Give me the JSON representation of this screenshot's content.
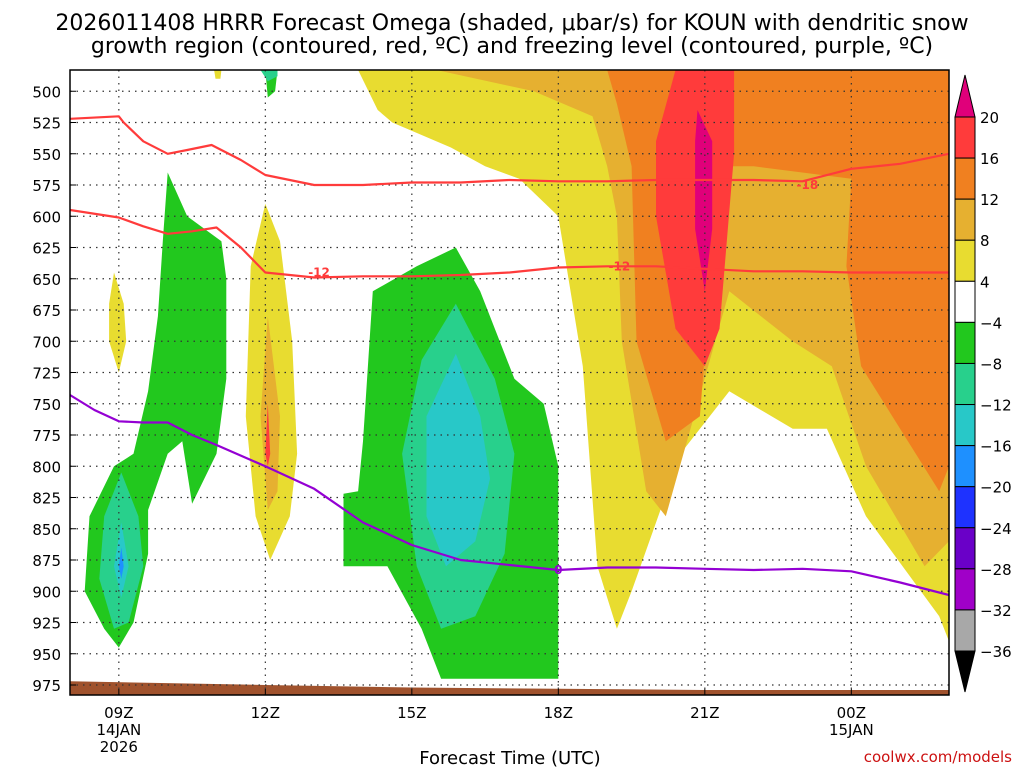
{
  "chart_data": {
    "type": "heatmap",
    "title_line1": "2026011408 HRRR Forecast Omega (shaded, μbar/s) for KOUN with dendritic snow",
    "title_line2": "growth region (contoured, red, ºC) and freezing level (contoured, purple, ºC)",
    "xlabel": "Forecast Time (UTC)",
    "credit": "coolwx.com/models",
    "x_ticks": [
      {
        "hour": 9,
        "label": "09Z",
        "sub1": "14JAN",
        "sub2": "2026"
      },
      {
        "hour": 12,
        "label": "12Z",
        "sub1": "",
        "sub2": ""
      },
      {
        "hour": 15,
        "label": "15Z",
        "sub1": "",
        "sub2": ""
      },
      {
        "hour": 18,
        "label": "18Z",
        "sub1": "",
        "sub2": ""
      },
      {
        "hour": 21,
        "label": "21Z",
        "sub1": "",
        "sub2": ""
      },
      {
        "hour": 24,
        "label": "00Z",
        "sub1": "15JAN",
        "sub2": ""
      }
    ],
    "xlim_hours": [
      8,
      26
    ],
    "y_ticks_hpa": [
      500,
      525,
      550,
      575,
      600,
      625,
      650,
      675,
      700,
      725,
      750,
      775,
      800,
      825,
      850,
      875,
      900,
      925,
      950,
      975
    ],
    "ylim_hpa": [
      483,
      983
    ],
    "colorbar": {
      "labels": [
        "20",
        "16",
        "12",
        "8",
        "4",
        "−4",
        "−8",
        "−12",
        "−16",
        "−20",
        "−24",
        "−28",
        "−32",
        "−36"
      ],
      "colors": [
        "#ff3b3b",
        "#f08020",
        "#e6b030",
        "#e8dc30",
        "#ffffff",
        "#22c81e",
        "#28d08c",
        "#28c8c8",
        "#1e90ff",
        "#1e32ff",
        "#6a00c8",
        "#a000c8",
        "#a8a8a8"
      ],
      "top_color": "#e0007a",
      "bottom_color": "#000000"
    },
    "omega_regions": [
      {
        "value": 4,
        "color": "#e8dc30",
        "points": [
          [
            10.8,
            483
          ],
          [
            26,
            483
          ],
          [
            26,
            940
          ],
          [
            25.8,
            920
          ],
          [
            24.3,
            840
          ],
          [
            23.5,
            770
          ],
          [
            22.8,
            770
          ],
          [
            21.5,
            740
          ],
          [
            20.5,
            790
          ],
          [
            19.5,
            900
          ],
          [
            19.2,
            930
          ],
          [
            18.8,
            880
          ],
          [
            18.5,
            720
          ],
          [
            18,
            600
          ],
          [
            17.2,
            570
          ],
          [
            16.5,
            560
          ],
          [
            15.8,
            545
          ],
          [
            14.6,
            525
          ],
          [
            14.3,
            515
          ],
          [
            13.9,
            483
          ]
        ]
      },
      {
        "value": 8,
        "color": "#e6b030",
        "points": [
          [
            15.5,
            483
          ],
          [
            26,
            483
          ],
          [
            26,
            860
          ],
          [
            25.5,
            880
          ],
          [
            24.3,
            800
          ],
          [
            23.6,
            720
          ],
          [
            22.8,
            700
          ],
          [
            21.5,
            660
          ],
          [
            20.2,
            840
          ],
          [
            19.8,
            820
          ],
          [
            19.3,
            700
          ],
          [
            19.2,
            600
          ],
          [
            19,
            560
          ],
          [
            18.7,
            520
          ],
          [
            17.5,
            500
          ]
        ]
      },
      {
        "value": 12,
        "color": "#f08020",
        "points": [
          [
            19,
            483
          ],
          [
            26,
            483
          ],
          [
            26,
            800
          ],
          [
            25.8,
            820
          ],
          [
            24.2,
            720
          ],
          [
            23.9,
            640
          ],
          [
            24,
            570
          ],
          [
            22,
            560
          ],
          [
            21.3,
            560
          ],
          [
            20.9,
            760
          ],
          [
            20.2,
            780
          ],
          [
            19.6,
            700
          ],
          [
            19.5,
            560
          ],
          [
            19.2,
            510
          ]
        ]
      },
      {
        "value": 16,
        "color": "#ff3b3b",
        "points": [
          [
            20.4,
            483
          ],
          [
            21.6,
            483
          ],
          [
            21.6,
            550
          ],
          [
            21.3,
            690
          ],
          [
            21,
            720
          ],
          [
            20.4,
            690
          ],
          [
            20,
            600
          ],
          [
            20,
            540
          ]
        ]
      },
      {
        "value": 20,
        "color": "#e0007a",
        "points": [
          [
            20.85,
            515
          ],
          [
            21.15,
            540
          ],
          [
            21.15,
            610
          ],
          [
            21,
            660
          ],
          [
            20.8,
            610
          ],
          [
            20.8,
            540
          ]
        ]
      },
      {
        "value": 4,
        "color": "#e8dc30",
        "points": [
          [
            12,
            590
          ],
          [
            12.3,
            620
          ],
          [
            12.55,
            700
          ],
          [
            12.65,
            790
          ],
          [
            12.5,
            840
          ],
          [
            12.1,
            875
          ],
          [
            11.8,
            840
          ],
          [
            11.6,
            760
          ],
          [
            11.7,
            640
          ]
        ]
      },
      {
        "value": 8,
        "color": "#e6b030",
        "points": [
          [
            12.05,
            680
          ],
          [
            12.3,
            760
          ],
          [
            12.25,
            820
          ],
          [
            12.05,
            835
          ],
          [
            11.9,
            760
          ]
        ]
      },
      {
        "value": 16,
        "color": "#ff3b3b",
        "points": [
          [
            12.05,
            750
          ],
          [
            12.1,
            790
          ],
          [
            12.05,
            800
          ],
          [
            12,
            790
          ]
        ]
      },
      {
        "value": 4,
        "color": "#e8dc30",
        "points": [
          [
            8.9,
            645
          ],
          [
            9.1,
            670
          ],
          [
            9.15,
            700
          ],
          [
            9,
            725
          ],
          [
            8.8,
            700
          ],
          [
            8.8,
            670
          ]
        ]
      },
      {
        "value": -4,
        "color": "#22c81e",
        "points": [
          [
            10,
            565
          ],
          [
            10.4,
            600
          ],
          [
            11.1,
            620
          ],
          [
            11.2,
            650
          ],
          [
            11.2,
            730
          ],
          [
            11,
            790
          ],
          [
            10.5,
            830
          ],
          [
            10.3,
            780
          ],
          [
            10,
            790
          ],
          [
            9.6,
            835
          ],
          [
            9.6,
            870
          ],
          [
            9.3,
            925
          ],
          [
            9,
            945
          ],
          [
            8.7,
            930
          ],
          [
            8.3,
            900
          ],
          [
            8.4,
            840
          ],
          [
            8.9,
            800
          ],
          [
            9.3,
            790
          ],
          [
            9.6,
            740
          ],
          [
            9.8,
            680
          ],
          [
            9.9,
            620
          ]
        ]
      },
      {
        "value": -4,
        "color": "#22c81e",
        "points": [
          [
            15.9,
            625
          ],
          [
            16.4,
            660
          ],
          [
            17.1,
            730
          ],
          [
            17.7,
            750
          ],
          [
            18,
            800
          ],
          [
            18,
            970
          ],
          [
            15.6,
            970
          ],
          [
            15.2,
            930
          ],
          [
            14.5,
            880
          ],
          [
            13.6,
            880
          ],
          [
            13.6,
            822
          ],
          [
            13.9,
            820
          ],
          [
            14,
            780
          ],
          [
            14.2,
            660
          ],
          [
            15.1,
            640
          ]
        ]
      },
      {
        "value": -4,
        "color": "#22c81e",
        "points": [
          [
            12,
            483
          ],
          [
            12.25,
            483
          ],
          [
            12.2,
            500
          ],
          [
            12.05,
            505
          ]
        ]
      },
      {
        "value": -8,
        "color": "#28d08c",
        "points": [
          [
            9.05,
            805
          ],
          [
            9.4,
            840
          ],
          [
            9.5,
            880
          ],
          [
            9.2,
            925
          ],
          [
            8.9,
            930
          ],
          [
            8.6,
            890
          ],
          [
            8.7,
            840
          ]
        ]
      },
      {
        "value": -8,
        "color": "#28d08c",
        "points": [
          [
            15.9,
            670
          ],
          [
            16.7,
            730
          ],
          [
            17.1,
            790
          ],
          [
            16.9,
            870
          ],
          [
            16.3,
            920
          ],
          [
            15.6,
            930
          ],
          [
            15.1,
            880
          ],
          [
            14.8,
            790
          ],
          [
            15.2,
            715
          ]
        ]
      },
      {
        "value": -12,
        "color": "#28c8c8",
        "points": [
          [
            9.05,
            845
          ],
          [
            9.2,
            880
          ],
          [
            9.05,
            905
          ],
          [
            8.9,
            880
          ]
        ]
      },
      {
        "value": -12,
        "color": "#28c8c8",
        "points": [
          [
            15.9,
            710
          ],
          [
            16.4,
            760
          ],
          [
            16.6,
            810
          ],
          [
            16.3,
            860
          ],
          [
            15.7,
            880
          ],
          [
            15.3,
            840
          ],
          [
            15.3,
            760
          ]
        ]
      },
      {
        "value": -16,
        "color": "#1e90ff",
        "points": [
          [
            9.05,
            865
          ],
          [
            9.1,
            880
          ],
          [
            9.05,
            890
          ],
          [
            9,
            880
          ]
        ]
      },
      {
        "value": -8,
        "color": "#28d08c",
        "points": [
          [
            11.9,
            483
          ],
          [
            12.25,
            483
          ],
          [
            12.25,
            488
          ],
          [
            12.05,
            492
          ]
        ]
      },
      {
        "value": 4,
        "color": "#e8dc30",
        "points": [
          [
            10.95,
            483
          ],
          [
            11.1,
            483
          ],
          [
            11.08,
            490
          ],
          [
            10.98,
            490
          ]
        ]
      }
    ],
    "terrain": {
      "color": "#a0522d",
      "points": [
        [
          8,
          972
        ],
        [
          12,
          975
        ],
        [
          15,
          977
        ],
        [
          18,
          978
        ],
        [
          21,
          979
        ],
        [
          26,
          979
        ],
        [
          26,
          983
        ],
        [
          8,
          983
        ]
      ]
    },
    "contours": [
      {
        "name": "-18C",
        "color": "#ff3b3b",
        "label": "-18",
        "label_at": [
          23.1,
          575
        ],
        "points": [
          [
            8,
            522
          ],
          [
            9,
            520
          ],
          [
            9.1,
            525
          ],
          [
            9.5,
            540
          ],
          [
            10,
            550
          ],
          [
            10.4,
            547
          ],
          [
            10.9,
            543
          ],
          [
            11.5,
            555
          ],
          [
            12,
            567
          ],
          [
            13,
            575
          ],
          [
            14,
            575
          ],
          [
            15,
            573
          ],
          [
            16,
            573
          ],
          [
            17,
            571
          ],
          [
            18,
            572
          ],
          [
            19,
            572
          ],
          [
            20,
            571
          ],
          [
            21,
            571
          ],
          [
            22,
            571
          ],
          [
            23,
            572
          ],
          [
            24,
            562
          ],
          [
            25,
            558
          ],
          [
            26,
            550
          ]
        ]
      },
      {
        "name": "-12C",
        "color": "#ff3b3b",
        "label": "-12",
        "label_at": [
          13.1,
          645
        ],
        "label2": "-12",
        "label2_at": [
          19.25,
          640
        ],
        "points": [
          [
            8,
            595
          ],
          [
            9,
            601
          ],
          [
            9.5,
            608
          ],
          [
            10,
            614
          ],
          [
            10.5,
            612
          ],
          [
            11,
            609
          ],
          [
            11.5,
            625
          ],
          [
            12,
            645
          ],
          [
            13,
            649
          ],
          [
            14,
            648
          ],
          [
            15,
            648
          ],
          [
            16,
            647
          ],
          [
            17,
            645
          ],
          [
            18,
            641
          ],
          [
            19,
            640
          ],
          [
            20,
            640
          ],
          [
            21,
            642
          ],
          [
            22,
            644
          ],
          [
            23,
            644
          ],
          [
            24,
            645
          ],
          [
            25,
            645
          ],
          [
            26,
            645
          ]
        ]
      },
      {
        "name": "0C freezing level",
        "color": "#9400d3",
        "label": "0",
        "label_at": [
          18,
          883
        ],
        "points": [
          [
            8,
            743
          ],
          [
            8.5,
            755
          ],
          [
            9,
            764
          ],
          [
            9.5,
            765
          ],
          [
            10,
            765
          ],
          [
            10.5,
            775
          ],
          [
            11,
            783
          ],
          [
            12,
            800
          ],
          [
            13,
            818
          ],
          [
            14,
            845
          ],
          [
            15,
            863
          ],
          [
            16,
            875
          ],
          [
            17,
            879
          ],
          [
            18,
            883
          ],
          [
            19,
            881
          ],
          [
            20,
            881
          ],
          [
            21,
            882
          ],
          [
            22,
            883
          ],
          [
            23,
            882
          ],
          [
            24,
            884
          ],
          [
            25,
            893
          ],
          [
            26,
            903
          ]
        ]
      }
    ]
  }
}
